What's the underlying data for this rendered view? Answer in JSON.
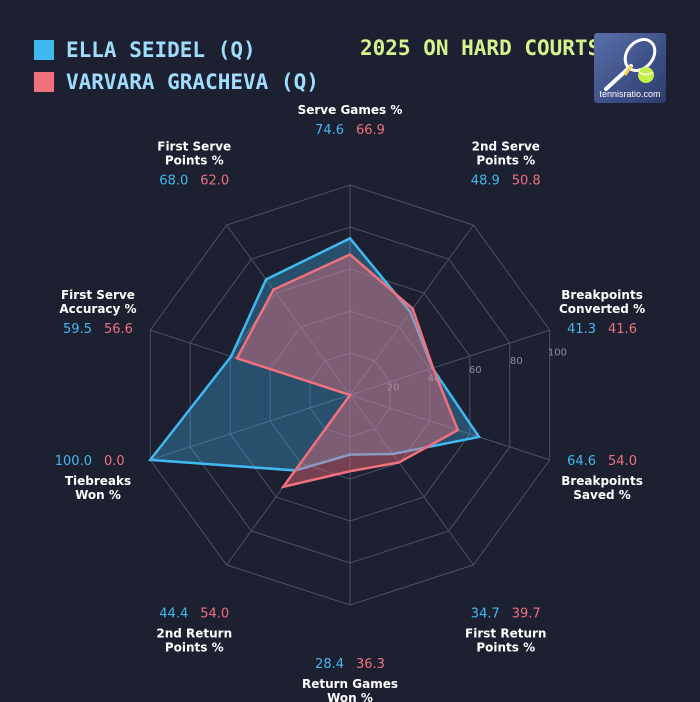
{
  "title": "2025 ON HARD COURTS",
  "logo": {
    "text": "tennisratio.com",
    "icon": "tennis-racket-ball-icon"
  },
  "colors": {
    "background": "#1c2030",
    "player1": "#42b8f0",
    "player2": "#f0707e",
    "title": "#d6f28e",
    "legend_text": "#9fdcff",
    "label": "#ffffff",
    "grid": "#4a5065"
  },
  "chart_data": {
    "type": "radar",
    "title": "2025 ON HARD COURTS",
    "rlim": [
      0,
      100
    ],
    "rticks": [
      "20",
      "40",
      "60",
      "80",
      "100"
    ],
    "categories": [
      "Serve Games %",
      "2nd Serve Points %",
      "Breakpoints Converted %",
      "Breakpoints Saved %",
      "First Return Points %",
      "Return Games Won %",
      "2nd Return Points %",
      "Tiebreaks Won %",
      "First Serve Accuracy %",
      "First Serve Points %"
    ],
    "category_lines": [
      [
        "Serve Games %"
      ],
      [
        "2nd Serve",
        "Points %"
      ],
      [
        "Breakpoints",
        "Converted %"
      ],
      [
        "Breakpoints",
        "Saved %"
      ],
      [
        "First Return",
        "Points %"
      ],
      [
        "Return Games",
        "Won %"
      ],
      [
        "2nd Return",
        "Points %"
      ],
      [
        "Tiebreaks",
        "Won %"
      ],
      [
        "First Serve",
        "Accuracy %"
      ],
      [
        "First Serve",
        "Points %"
      ]
    ],
    "series": [
      {
        "name": "ELLA SEIDEL (Q)",
        "values": [
          74.6,
          48.9,
          41.3,
          64.6,
          34.7,
          28.4,
          44.4,
          100.0,
          59.5,
          68.0
        ]
      },
      {
        "name": "VARVARA GRACHEVA (Q)",
        "values": [
          66.9,
          50.8,
          41.6,
          54.0,
          39.7,
          36.3,
          54.0,
          0.0,
          56.6,
          62.0
        ]
      }
    ]
  }
}
